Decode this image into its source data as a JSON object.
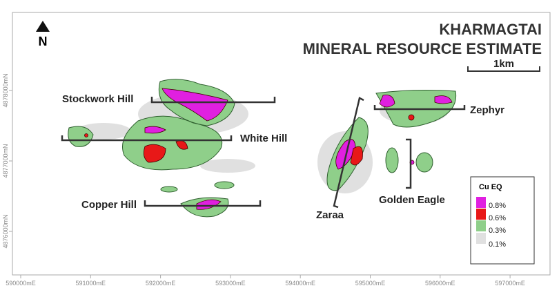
{
  "header": {
    "title_line1": "KHARMAGTAI",
    "title_line2": "MINERAL RESOURCE ESTIMATE"
  },
  "north": "N",
  "scale_bar": "1km",
  "deposits": [
    "Stockwork Hill",
    "White Hill",
    "Copper Hill",
    "Zaraa",
    "Golden Eagle",
    "Zephyr"
  ],
  "legend": {
    "title": "Cu EQ",
    "items": [
      "0.8%",
      "0.6%",
      "0.3%",
      "0.1%"
    ]
  },
  "x_axis_labels": [
    "590000mE",
    "591000mE",
    "592000mE",
    "593000mE",
    "594000mE",
    "595000mE",
    "596000mE",
    "597000mE"
  ],
  "y_axis_labels": [
    "4878000mN",
    "4877000mN",
    "4876000mN"
  ]
}
